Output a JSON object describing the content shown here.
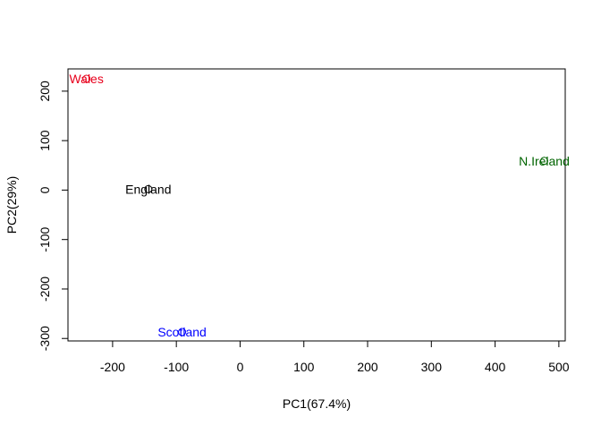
{
  "chart_data": {
    "type": "scatter",
    "title": "",
    "xlabel": "PC1(67.4%)",
    "ylabel": "PC2(29%)",
    "xlim": [
      -270,
      510
    ],
    "ylim": [
      -305,
      245
    ],
    "xticks": [
      -200,
      -100,
      0,
      100,
      200,
      300,
      400,
      500
    ],
    "yticks": [
      -300,
      -200,
      -100,
      0,
      100,
      200
    ],
    "grid": false,
    "points": [
      {
        "label": "England",
        "x": -144,
        "y": 2,
        "color": "#000000"
      },
      {
        "label": "Wales",
        "x": -241,
        "y": 225,
        "color": "#e8001c"
      },
      {
        "label": "Scotland",
        "x": -91,
        "y": -287,
        "color": "#0000ff"
      },
      {
        "label": "N.Ireland",
        "x": 477,
        "y": 59,
        "color": "#006400"
      }
    ]
  }
}
